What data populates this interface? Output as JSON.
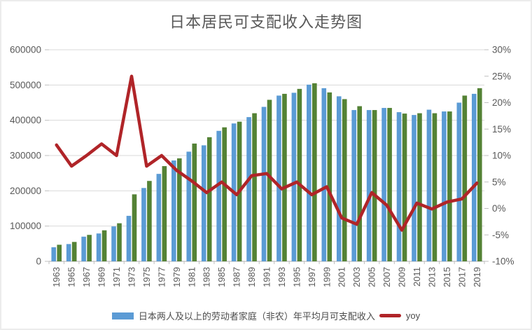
{
  "chart_data": {
    "type": "combo-bar-line",
    "title": "日本居民可支配收入走势图",
    "categories": [
      "1963",
      "1965",
      "1967",
      "1969",
      "1971",
      "1973",
      "1975",
      "1977",
      "1979",
      "1981",
      "1983",
      "1985",
      "1987",
      "1989",
      "1991",
      "1993",
      "1995",
      "1997",
      "1999",
      "2001",
      "2003",
      "2005",
      "2007",
      "2009",
      "2011",
      "2013",
      "2015",
      "2017",
      "2019"
    ],
    "series": [
      {
        "id": "income_blue",
        "name": "日本两人及以上的劳动者家庭（非农）年平均月可支配收入",
        "type": "bar",
        "axis": "left",
        "color": "#5B9BD5",
        "values": [
          40000,
          49000,
          70000,
          79000,
          99000,
          129000,
          208000,
          248000,
          286000,
          311000,
          329000,
          370000,
          391000,
          409000,
          438000,
          470000,
          478000,
          501000,
          491000,
          468000,
          429000,
          429000,
          435000,
          423000,
          415000,
          430000,
          425000,
          450000,
          475000
        ]
      },
      {
        "id": "income_green",
        "name": "",
        "type": "bar",
        "axis": "left",
        "color": "#548235",
        "values": [
          47000,
          55000,
          75000,
          88000,
          108000,
          190000,
          228000,
          270000,
          292000,
          334000,
          352000,
          380000,
          396000,
          420000,
          458000,
          475000,
          489000,
          505000,
          479000,
          460000,
          440000,
          429000,
          435000,
          419000,
          420000,
          420000,
          425000,
          470000,
          491000
        ]
      },
      {
        "id": "yoy",
        "name": "yoy",
        "type": "line",
        "axis": "right",
        "color": "#B02428",
        "values": [
          12,
          8,
          10,
          12.2,
          10,
          25,
          8,
          10,
          7.2,
          5.2,
          3,
          5,
          2.6,
          6.2,
          6.6,
          3.7,
          5,
          2.6,
          4.1,
          -1.8,
          -3,
          3,
          0.6,
          -4.1,
          1,
          -0.1,
          1.2,
          1.8,
          4.8
        ]
      }
    ],
    "left_axis": {
      "min": 0,
      "max": 600000,
      "ticks": [
        "600000",
        "500000",
        "400000",
        "300000",
        "200000",
        "100000",
        "0"
      ]
    },
    "right_axis": {
      "min": -10,
      "max": 30,
      "ticks": [
        "30%",
        "25%",
        "20%",
        "15%",
        "10%",
        "5%",
        "0%",
        "-5%",
        "-10%"
      ]
    },
    "grid": true,
    "legend_position": "bottom",
    "legend": [
      {
        "label": "日本两人及以上的劳动者家庭（非农）年平均月可支配收入",
        "swatch": "bar",
        "color": "#5B9BD5"
      },
      {
        "label": "yoy",
        "swatch": "line",
        "color": "#B02428"
      }
    ],
    "colors": {
      "grid": "#D9D9D9",
      "axis_line": "#BFBFBF",
      "axis_text": "#595959"
    }
  }
}
